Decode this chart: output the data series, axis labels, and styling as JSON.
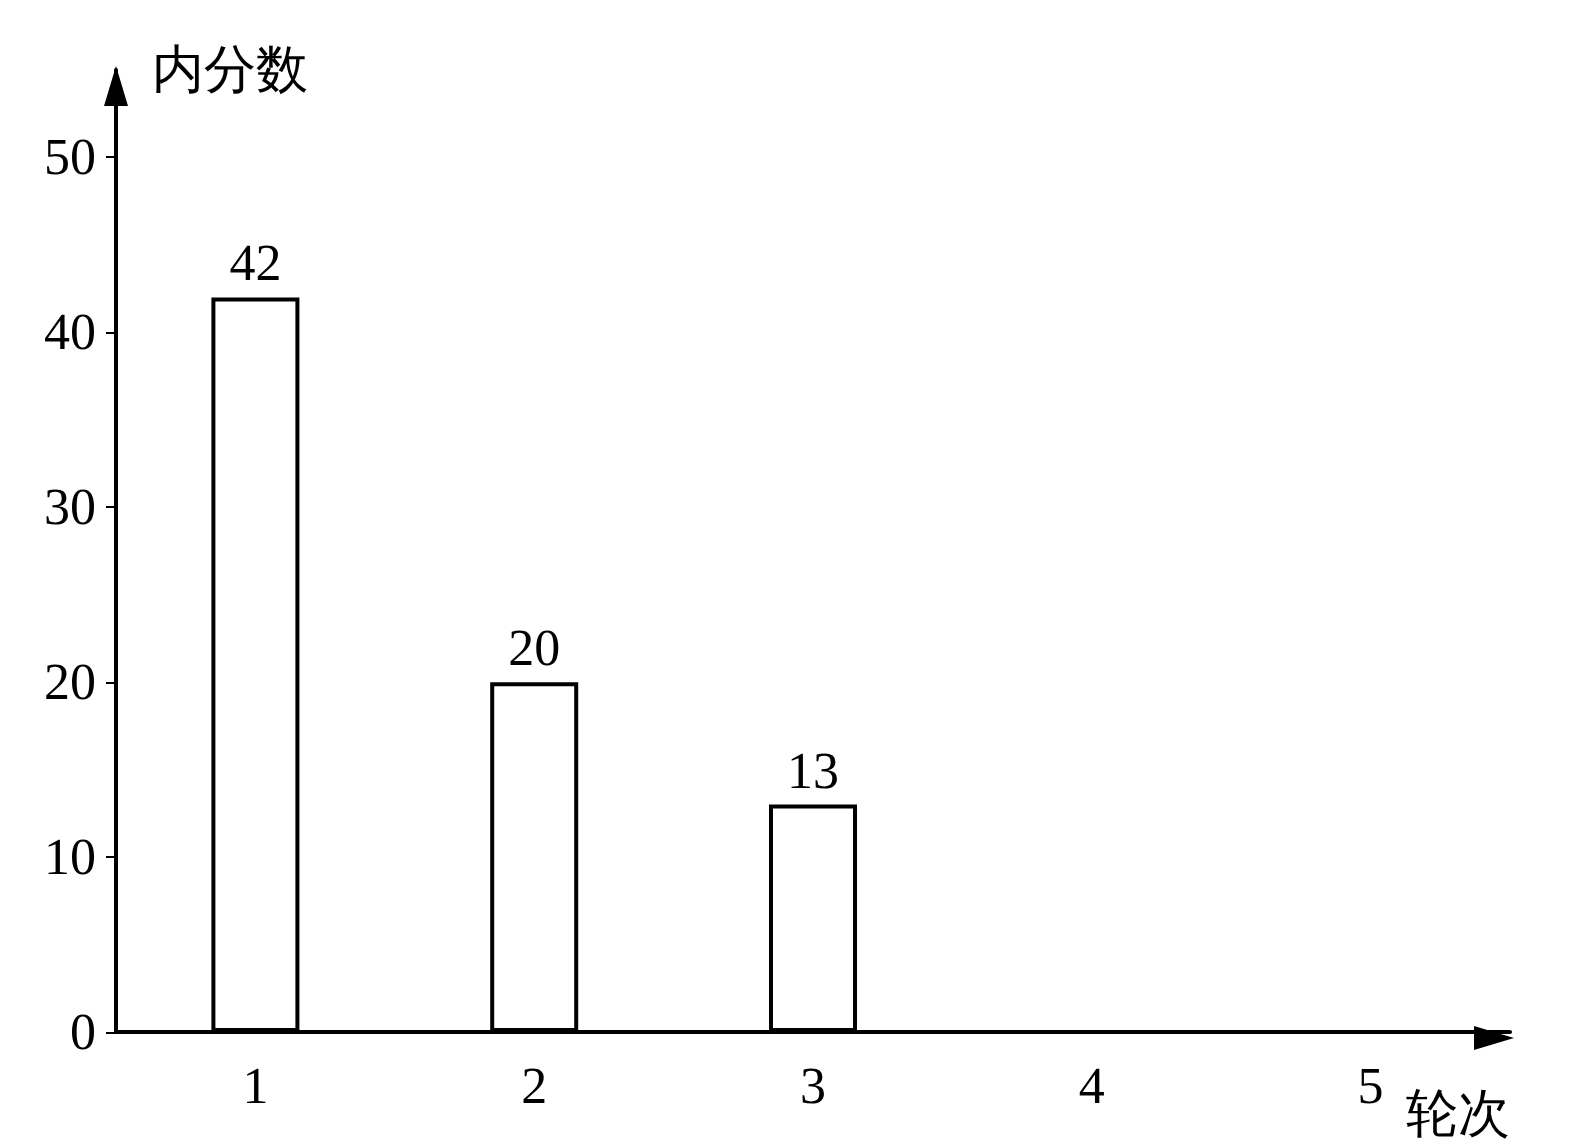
{
  "chart_data": {
    "type": "bar",
    "xlabel": "轮次",
    "ylabel": "内分数",
    "categories": [
      "1",
      "2",
      "3",
      "4",
      "5"
    ],
    "values": [
      42,
      20,
      13,
      null,
      null
    ],
    "color": "#ffffff",
    "ylim": [
      0,
      55
    ],
    "yticks": [
      0,
      10,
      20,
      30,
      40,
      50
    ],
    "data_labels": true,
    "grid": false
  }
}
